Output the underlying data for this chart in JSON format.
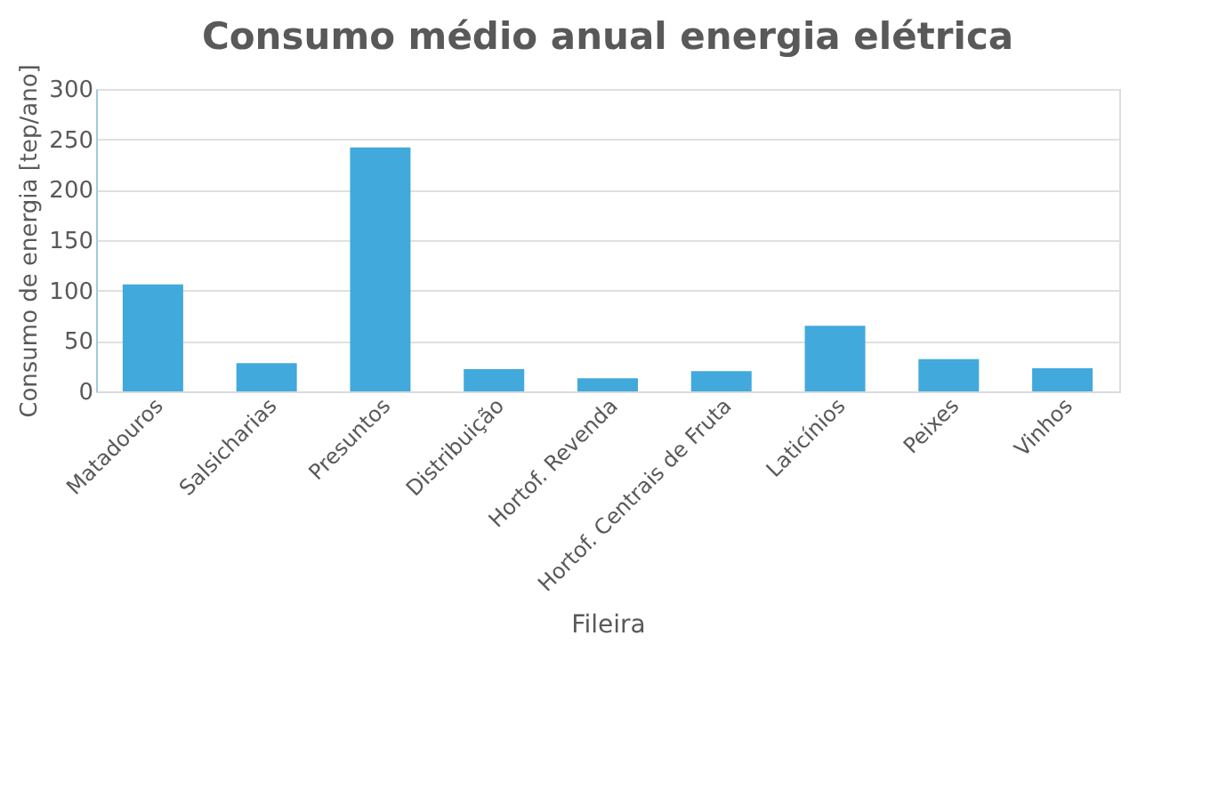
{
  "chart_data": {
    "type": "bar",
    "title": "Consumo médio anual energia elétrica",
    "xlabel": "Fileira",
    "ylabel": "Consumo de energia [tep/ano]",
    "categories": [
      "Matadouros",
      "Salsicharias",
      "Presuntos",
      "Distribuição",
      "Hortof. Revenda",
      "Hortof. Centrais de Fruta",
      "Laticínios",
      "Peixes",
      "Vinhos"
    ],
    "values": [
      106,
      28,
      242,
      22,
      13,
      20,
      65,
      32,
      23
    ],
    "color": "#41a9dc",
    "ylim": [
      0,
      300
    ],
    "yticks": [
      0,
      50,
      100,
      150,
      200,
      250,
      300
    ],
    "grid": "y"
  }
}
